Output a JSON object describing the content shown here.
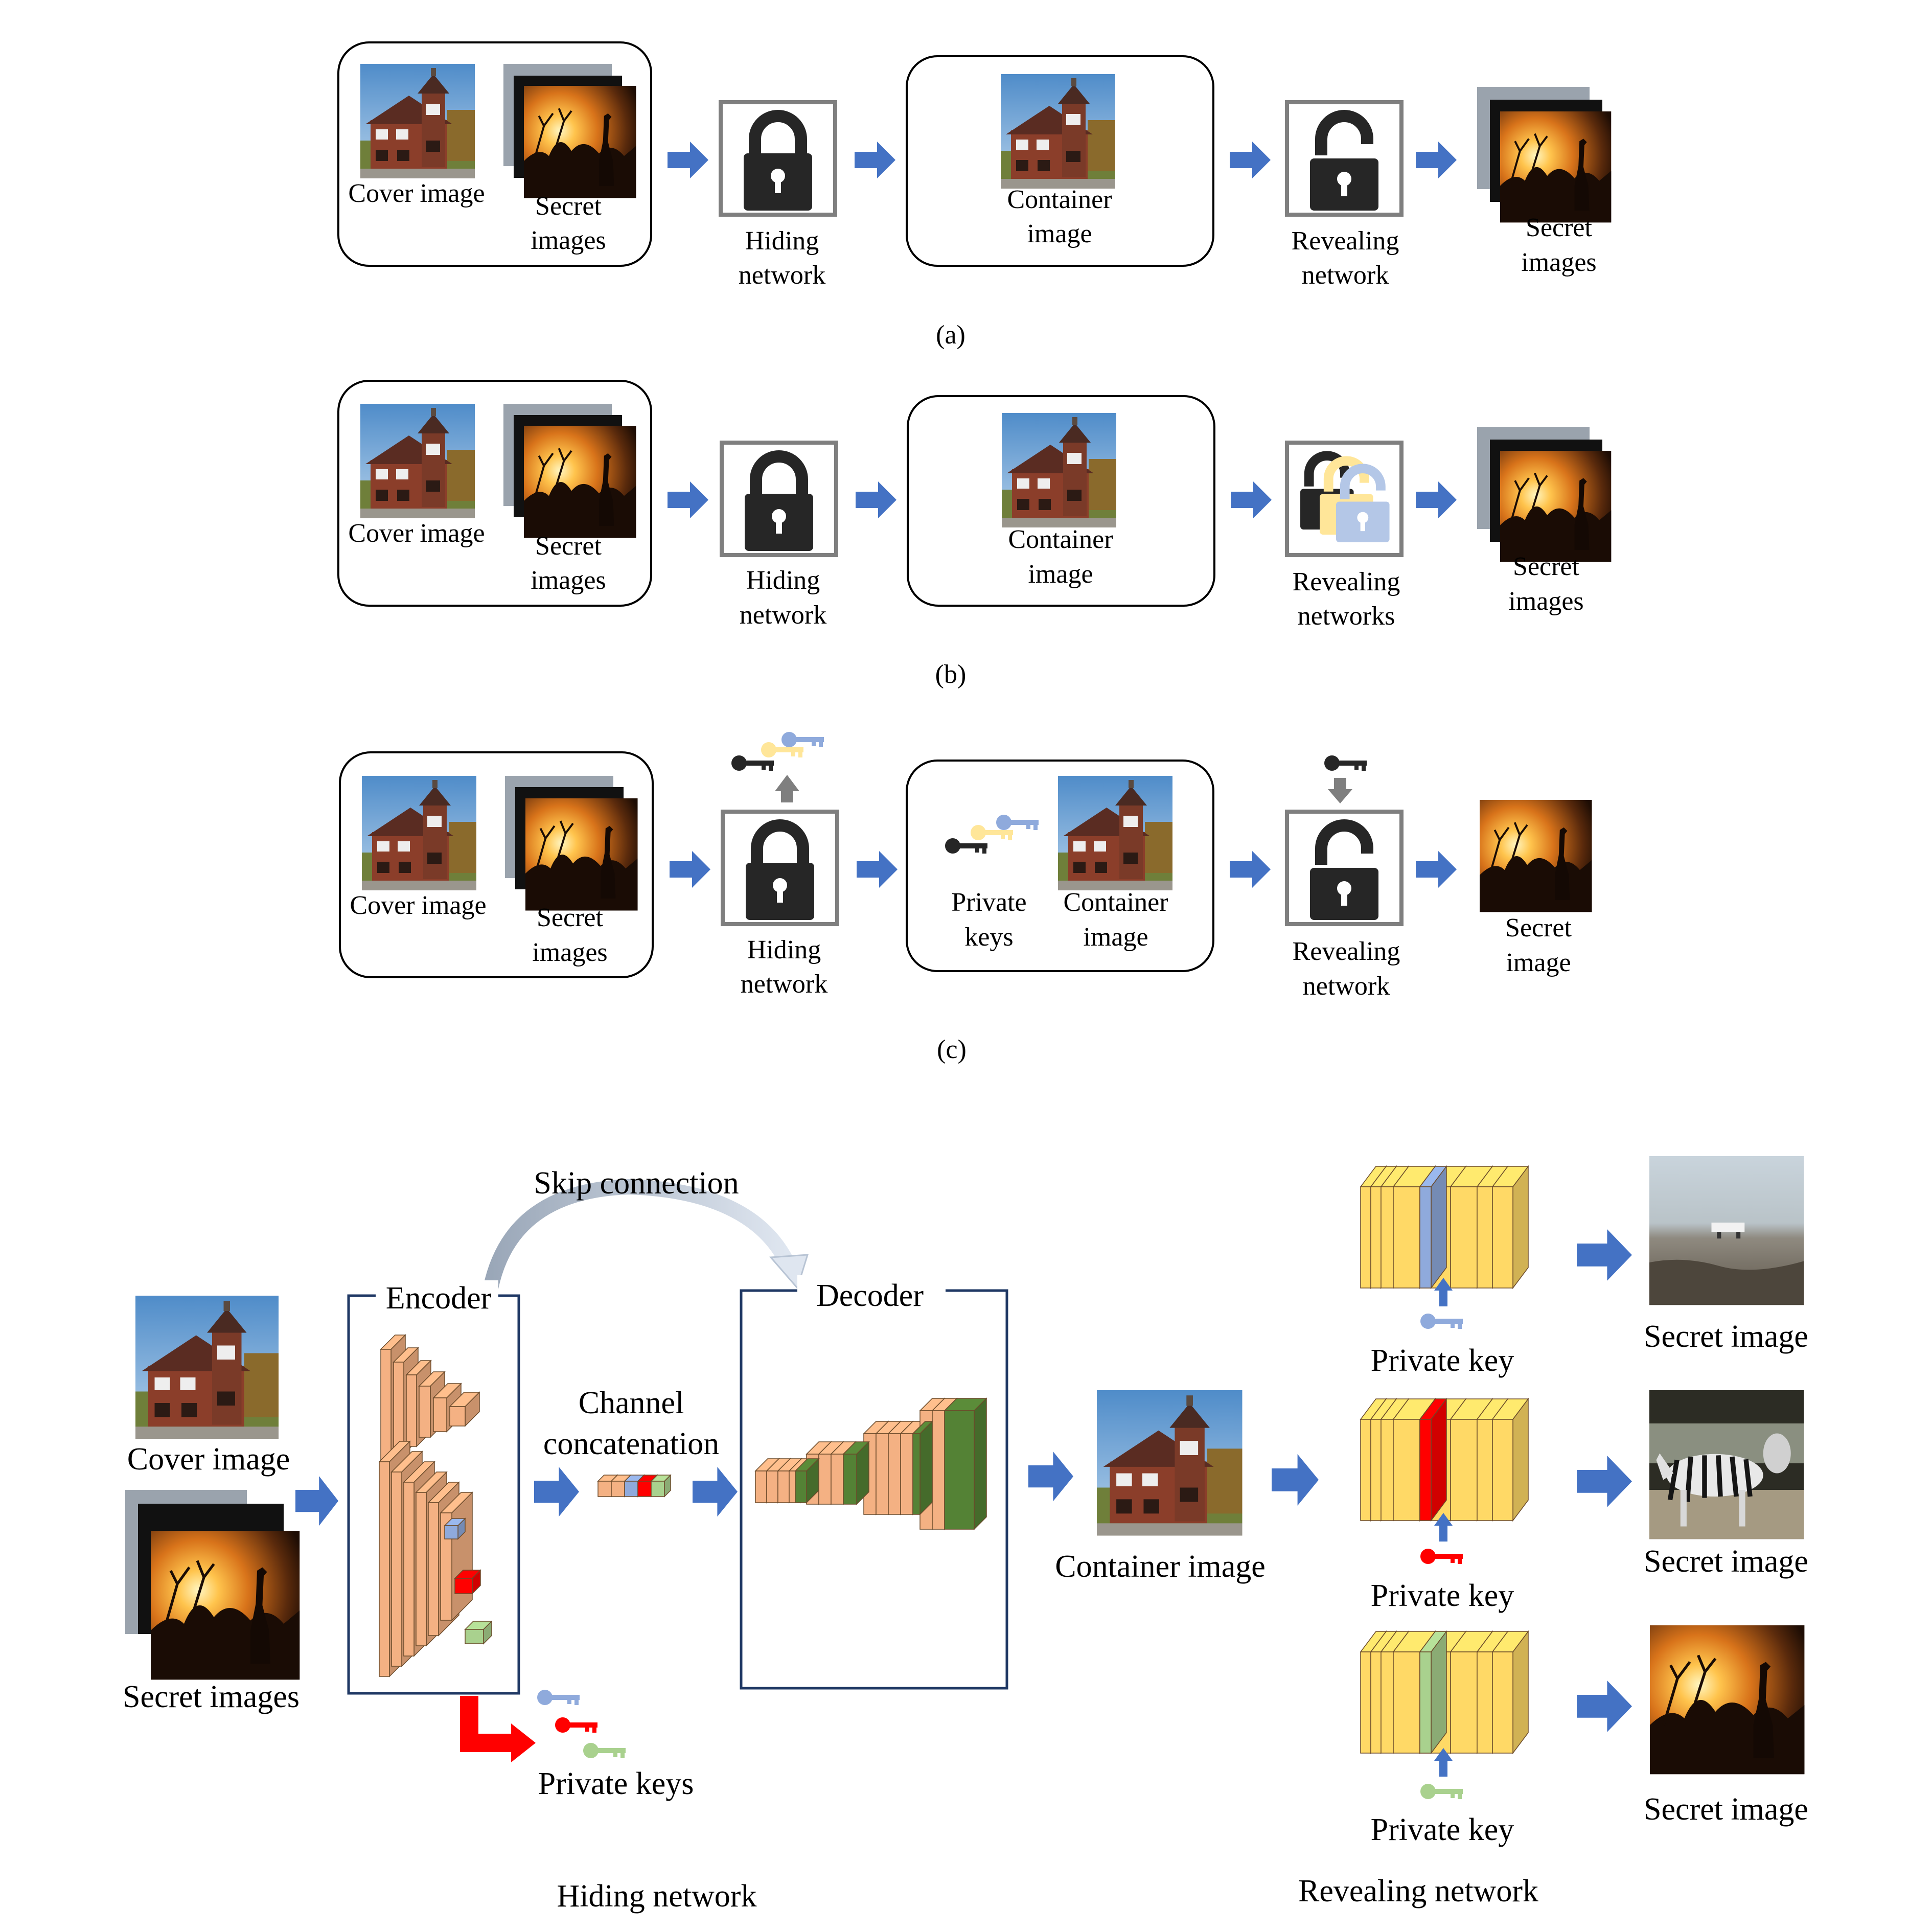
{
  "panel_a": {
    "cover_label": "Cover image",
    "secret_label": [
      "Secret",
      "images"
    ],
    "hiding_label": [
      "Hiding",
      "network"
    ],
    "container_label": [
      "Container",
      "image"
    ],
    "revealing_label": [
      "Revealing",
      "network"
    ],
    "output_label": [
      "Secret",
      "images"
    ],
    "caption": "(a)"
  },
  "panel_b": {
    "cover_label": "Cover image",
    "secret_label": [
      "Secret",
      "images"
    ],
    "hiding_label": [
      "Hiding",
      "network"
    ],
    "container_label": [
      "Container",
      "image"
    ],
    "revealing_label": [
      "Revealing",
      "networks"
    ],
    "output_label": [
      "Secret",
      "images"
    ],
    "caption": "(b)"
  },
  "panel_c": {
    "cover_label": "Cover image",
    "secret_label": [
      "Secret",
      "images"
    ],
    "hiding_label": [
      "Hiding",
      "network"
    ],
    "keys_label": [
      "Private",
      "keys"
    ],
    "container_label": [
      "Container",
      "image"
    ],
    "revealing_label": [
      "Revealing",
      "network"
    ],
    "output_label": [
      "Secret",
      "image"
    ],
    "caption": "(c)"
  },
  "bottom": {
    "skip_connection": "Skip connection",
    "encoder": "Encoder",
    "decoder": "Decoder",
    "channel_concat": [
      "Channel",
      "concatenation"
    ],
    "cover_label": "Cover image",
    "secret_label": "Secret images",
    "private_keys": "Private keys",
    "container_label": "Container image",
    "private_key_labels": [
      "Private key",
      "Private key",
      "Private key"
    ],
    "secret_image_labels": [
      "Secret image",
      "Secret image",
      "Secret image"
    ],
    "hiding_network": "Hiding network",
    "revealing_network": "Revealing network"
  },
  "colors": {
    "arrow": "#4472c4",
    "key_black": "#262626",
    "key_yellow": "#ffe699",
    "key_blue": "#8faadc",
    "key_red": "#ff0000",
    "key_green": "#a9d18e",
    "enc_block": "#f4b183",
    "dec_green": "#548235",
    "rev_block": "#ffd966"
  }
}
